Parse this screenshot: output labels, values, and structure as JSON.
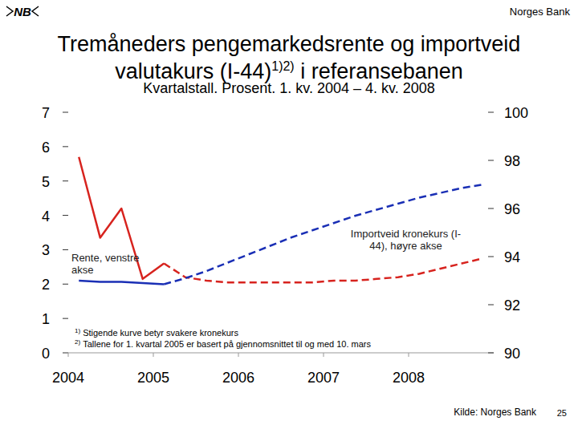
{
  "chart_data": {
    "type": "line",
    "header": "Norges Bank",
    "logo": "NB",
    "title": "Tremåneders pengemarkedsrente og importveid valutakurs (I-44)1)2) i referansebanen",
    "subtitle": "Kvartalstall. Prosent. 1. kv. 2004 – 4. kv. 2008",
    "notes": [
      {
        "mark": "1)",
        "text": "Stigende kurve betyr svakere kronekurs"
      },
      {
        "mark": "2)",
        "text": "Tallene for 1. kvartal 2005 er basert på gjennomsnittet til og med 10. mars"
      }
    ],
    "source": "Kilde: Norges Bank",
    "page_number": "25",
    "x": [
      2004.125,
      2004.375,
      2004.625,
      2004.875,
      2005.125,
      2005.375,
      2005.625,
      2005.875,
      2006.125,
      2006.375,
      2006.625,
      2006.875,
      2007.125,
      2007.375,
      2007.625,
      2007.875,
      2008.125,
      2008.375,
      2008.625,
      2008.875
    ],
    "xlim": [
      2004,
      2009
    ],
    "xticks": [
      2004,
      2005,
      2006,
      2007,
      2008
    ],
    "ylim": [
      0,
      7
    ],
    "yticks": [
      0,
      1,
      2,
      3,
      4,
      5,
      6,
      7
    ],
    "y2lim": [
      90,
      100
    ],
    "y2ticks": [
      90,
      92,
      94,
      96,
      98,
      100
    ],
    "grid": false,
    "series": [
      {
        "name": "Rente, venstre akse",
        "color": "#d7231e",
        "line_style": "solid",
        "values": [
          5.7,
          3.35,
          4.2,
          2.15,
          2.6,
          null,
          null,
          null,
          null,
          null,
          null,
          null,
          null,
          null,
          null,
          null,
          null,
          null,
          null,
          null
        ]
      },
      {
        "color": "#d7231e",
        "line_style": "dashed",
        "values": [
          null,
          null,
          null,
          null,
          2.6,
          2.2,
          2.1,
          2.05,
          2.05,
          2.05,
          2.05,
          2.05,
          2.1,
          2.1,
          2.15,
          2.2,
          2.3,
          2.45,
          2.6,
          2.75
        ]
      },
      {
        "name": "Importveid kronekurs (I-44), høyre akse",
        "color": "#1a2fb5",
        "line_style": "solid",
        "axis": "y2",
        "values": [
          93.0,
          92.95,
          92.95,
          92.9,
          92.85,
          null,
          null,
          null,
          null,
          null,
          null,
          null,
          null,
          null,
          null,
          null,
          null,
          null,
          null,
          null
        ]
      },
      {
        "color": "#1a2fb5",
        "line_style": "dashed",
        "axis": "y2",
        "values": [
          null,
          null,
          null,
          null,
          92.85,
          93.1,
          93.4,
          93.75,
          94.1,
          94.45,
          94.8,
          95.1,
          95.4,
          95.7,
          95.95,
          96.2,
          96.45,
          96.65,
          96.85,
          97.0
        ]
      }
    ]
  }
}
